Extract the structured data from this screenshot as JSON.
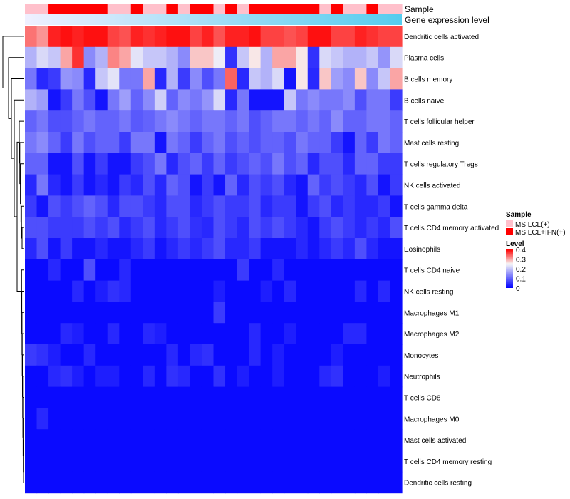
{
  "chart_data": {
    "type": "heatmap",
    "title": "",
    "annotation_rows": [
      {
        "name": "Sample",
        "label": "Sample"
      },
      {
        "name": "Gene expression level",
        "label": "Gene expression level"
      }
    ],
    "sample_groups": [
      0,
      0,
      1,
      1,
      1,
      1,
      1,
      0,
      0,
      1,
      0,
      0,
      1,
      0,
      1,
      1,
      0,
      1,
      0,
      1,
      1,
      1,
      1,
      1,
      1,
      0,
      1,
      0,
      0,
      1,
      0,
      0
    ],
    "legend_sample": {
      "title": "Sample",
      "entries": [
        {
          "label": "MS LCL(+)",
          "color": "#ffc0cb"
        },
        {
          "label": "MS LCL+IFN(+)",
          "color": "#ff0000"
        }
      ]
    },
    "legend_level": {
      "title": "Level",
      "ticks": [
        0.4,
        0.3,
        0.2,
        0.1,
        0
      ],
      "range": [
        0,
        0.4
      ],
      "colors": {
        "low": "#0000ff",
        "mid": "#f7f7f7",
        "high": "#ff0000"
      },
      "mid_value": 0.25
    },
    "expression_bar": {
      "from": "#f0f0ff",
      "to": "#55ccee"
    },
    "rows": [
      "Dendritic cells activated",
      "Plasma cells",
      "B cells memory",
      "B cells naive",
      "T cells follicular helper",
      "Mast cells resting",
      "T cells regulatory  Tregs",
      "NK cells activated",
      "T cells gamma delta",
      "T cells CD4 memory activated",
      "Eosinophils",
      "T cells CD4 naive",
      "NK cells resting",
      "Macrophages M1",
      "Macrophages M2",
      "Monocytes",
      "Neutrophils",
      "T cells CD8",
      "Macrophages M0",
      "Mast cells activated",
      "T cells CD4 memory resting",
      "Dendritic cells resting"
    ],
    "values": [
      [
        0.33,
        0.31,
        0.38,
        0.39,
        0.38,
        0.39,
        0.39,
        0.36,
        0.35,
        0.38,
        0.37,
        0.38,
        0.39,
        0.39,
        0.36,
        0.38,
        0.35,
        0.38,
        0.38,
        0.39,
        0.36,
        0.36,
        0.35,
        0.36,
        0.39,
        0.39,
        0.36,
        0.36,
        0.38,
        0.37,
        0.36,
        0.36
      ],
      [
        0.18,
        0.22,
        0.2,
        0.3,
        0.37,
        0.14,
        0.18,
        0.32,
        0.3,
        0.23,
        0.2,
        0.2,
        0.18,
        0.14,
        0.28,
        0.28,
        0.24,
        0.05,
        0.2,
        0.26,
        0.18,
        0.3,
        0.3,
        0.26,
        0.05,
        0.22,
        0.2,
        0.18,
        0.18,
        0.2,
        0.15,
        0.22
      ],
      [
        0.12,
        0.04,
        0.06,
        0.15,
        0.14,
        0.04,
        0.2,
        0.23,
        0.12,
        0.12,
        0.3,
        0.04,
        0.18,
        0.06,
        0.14,
        0.08,
        0.12,
        0.34,
        0.04,
        0.2,
        0.18,
        0.22,
        0.02,
        0.26,
        0.04,
        0.28,
        0.16,
        0.14,
        0.28,
        0.14,
        0.2,
        0.3
      ],
      [
        0.18,
        0.16,
        0.02,
        0.06,
        0.12,
        0.08,
        0.02,
        0.12,
        0.16,
        0.1,
        0.14,
        0.21,
        0.1,
        0.14,
        0.12,
        0.15,
        0.22,
        0.04,
        0.12,
        0.02,
        0.02,
        0.02,
        0.2,
        0.12,
        0.14,
        0.12,
        0.12,
        0.14,
        0.08,
        0.12,
        0.12,
        0.06
      ],
      [
        0.1,
        0.12,
        0.08,
        0.08,
        0.1,
        0.12,
        0.1,
        0.1,
        0.12,
        0.09,
        0.1,
        0.12,
        0.14,
        0.12,
        0.1,
        0.12,
        0.12,
        0.1,
        0.12,
        0.08,
        0.1,
        0.12,
        0.12,
        0.1,
        0.12,
        0.1,
        0.14,
        0.1,
        0.1,
        0.12,
        0.12,
        0.1
      ],
      [
        0.12,
        0.14,
        0.1,
        0.06,
        0.12,
        0.08,
        0.1,
        0.1,
        0.06,
        0.12,
        0.12,
        0.02,
        0.12,
        0.1,
        0.06,
        0.1,
        0.12,
        0.08,
        0.1,
        0.08,
        0.1,
        0.1,
        0.08,
        0.12,
        0.1,
        0.1,
        0.06,
        0.02,
        0.1,
        0.06,
        0.12,
        0.1
      ],
      [
        0.1,
        0.1,
        0.02,
        0.02,
        0.08,
        0.02,
        0.06,
        0.02,
        0.02,
        0.06,
        0.08,
        0.12,
        0.04,
        0.08,
        0.1,
        0.06,
        0.1,
        0.06,
        0.08,
        0.1,
        0.08,
        0.12,
        0.08,
        0.1,
        0.04,
        0.08,
        0.08,
        0.04,
        0.1,
        0.1,
        0.06,
        0.06
      ],
      [
        0.04,
        0.12,
        0.04,
        0.02,
        0.06,
        0.02,
        0.04,
        0.02,
        0.06,
        0.04,
        0.08,
        0.04,
        0.1,
        0.08,
        0.02,
        0.06,
        0.02,
        0.1,
        0.04,
        0.08,
        0.06,
        0.08,
        0.04,
        0.02,
        0.1,
        0.06,
        0.08,
        0.06,
        0.04,
        0.08,
        0.02,
        0.06
      ],
      [
        0.06,
        0.02,
        0.08,
        0.06,
        0.08,
        0.1,
        0.08,
        0.04,
        0.08,
        0.08,
        0.06,
        0.04,
        0.08,
        0.08,
        0.04,
        0.06,
        0.08,
        0.06,
        0.06,
        0.08,
        0.04,
        0.06,
        0.06,
        0.02,
        0.06,
        0.08,
        0.04,
        0.06,
        0.04,
        0.04,
        0.06,
        0.02
      ],
      [
        0.08,
        0.08,
        0.06,
        0.06,
        0.06,
        0.08,
        0.06,
        0.08,
        0.04,
        0.06,
        0.08,
        0.04,
        0.06,
        0.08,
        0.05,
        0.04,
        0.08,
        0.06,
        0.04,
        0.08,
        0.06,
        0.08,
        0.06,
        0.04,
        0.02,
        0.06,
        0.08,
        0.06,
        0.04,
        0.06,
        0.04,
        0.08
      ],
      [
        0.04,
        0.08,
        0.02,
        0.06,
        0.02,
        0.02,
        0.04,
        0.02,
        0.02,
        0.04,
        0.06,
        0.02,
        0.04,
        0.06,
        0.04,
        0.06,
        0.08,
        0.04,
        0.04,
        0.06,
        0.02,
        0.02,
        0.02,
        0.04,
        0.02,
        0.04,
        0.06,
        0.04,
        0.08,
        0.04,
        0.02,
        0.02
      ],
      [
        0.01,
        0.01,
        0.04,
        0.01,
        0.01,
        0.08,
        0.01,
        0.01,
        0.04,
        0.01,
        0.01,
        0.01,
        0.01,
        0.01,
        0.01,
        0.01,
        0.01,
        0.01,
        0.06,
        0.01,
        0.01,
        0.04,
        0.01,
        0.01,
        0.01,
        0.01,
        0.01,
        0.01,
        0.01,
        0.01,
        0.01,
        0.01
      ],
      [
        0.01,
        0.01,
        0.01,
        0.01,
        0.04,
        0.01,
        0.03,
        0.05,
        0.04,
        0.01,
        0.01,
        0.01,
        0.01,
        0.01,
        0.01,
        0.01,
        0.03,
        0.01,
        0.01,
        0.01,
        0.03,
        0.01,
        0.04,
        0.01,
        0.01,
        0.01,
        0.01,
        0.01,
        0.04,
        0.01,
        0.04,
        0.01
      ],
      [
        0.01,
        0.01,
        0.01,
        0.01,
        0.01,
        0.01,
        0.01,
        0.01,
        0.01,
        0.01,
        0.01,
        0.01,
        0.01,
        0.01,
        0.01,
        0.01,
        0.06,
        0.01,
        0.01,
        0.01,
        0.01,
        0.01,
        0.01,
        0.01,
        0.01,
        0.01,
        0.01,
        0.01,
        0.01,
        0.01,
        0.01,
        0.01
      ],
      [
        0.01,
        0.01,
        0.01,
        0.04,
        0.03,
        0.01,
        0.01,
        0.04,
        0.01,
        0.01,
        0.04,
        0.03,
        0.01,
        0.01,
        0.01,
        0.01,
        0.01,
        0.01,
        0.01,
        0.04,
        0.01,
        0.01,
        0.03,
        0.01,
        0.01,
        0.01,
        0.01,
        0.04,
        0.04,
        0.01,
        0.01,
        0.01
      ],
      [
        0.06,
        0.05,
        0.03,
        0.01,
        0.01,
        0.04,
        0.01,
        0.01,
        0.01,
        0.01,
        0.01,
        0.01,
        0.04,
        0.01,
        0.04,
        0.05,
        0.01,
        0.01,
        0.01,
        0.04,
        0.01,
        0.03,
        0.01,
        0.01,
        0.01,
        0.01,
        0.03,
        0.01,
        0.01,
        0.01,
        0.01,
        0.01
      ],
      [
        0.01,
        0.01,
        0.04,
        0.05,
        0.03,
        0.01,
        0.03,
        0.03,
        0.01,
        0.01,
        0.04,
        0.01,
        0.05,
        0.04,
        0.01,
        0.01,
        0.05,
        0.01,
        0.03,
        0.01,
        0.01,
        0.03,
        0.01,
        0.01,
        0.01,
        0.04,
        0.05,
        0.01,
        0.01,
        0.01,
        0.03,
        0.01
      ],
      [
        0.01,
        0.01,
        0.01,
        0.01,
        0.01,
        0.01,
        0.01,
        0.01,
        0.01,
        0.01,
        0.01,
        0.01,
        0.01,
        0.01,
        0.01,
        0.01,
        0.01,
        0.01,
        0.01,
        0.01,
        0.01,
        0.01,
        0.01,
        0.01,
        0.01,
        0.01,
        0.01,
        0.01,
        0.01,
        0.01,
        0.01,
        0.01
      ],
      [
        0.01,
        0.04,
        0.01,
        0.01,
        0.01,
        0.01,
        0.01,
        0.01,
        0.01,
        0.01,
        0.01,
        0.01,
        0.01,
        0.01,
        0.01,
        0.01,
        0.01,
        0.01,
        0.01,
        0.01,
        0.01,
        0.01,
        0.01,
        0.01,
        0.01,
        0.01,
        0.01,
        0.01,
        0.01,
        0.01,
        0.01,
        0.01
      ],
      [
        0.01,
        0.01,
        0.01,
        0.01,
        0.01,
        0.01,
        0.01,
        0.01,
        0.01,
        0.01,
        0.01,
        0.01,
        0.01,
        0.01,
        0.01,
        0.01,
        0.01,
        0.01,
        0.01,
        0.01,
        0.01,
        0.01,
        0.01,
        0.01,
        0.01,
        0.01,
        0.01,
        0.01,
        0.01,
        0.01,
        0.01,
        0.01
      ],
      [
        0.01,
        0.01,
        0.01,
        0.01,
        0.01,
        0.01,
        0.01,
        0.01,
        0.01,
        0.01,
        0.01,
        0.01,
        0.01,
        0.01,
        0.01,
        0.01,
        0.01,
        0.01,
        0.01,
        0.01,
        0.01,
        0.01,
        0.01,
        0.01,
        0.01,
        0.01,
        0.01,
        0.01,
        0.01,
        0.01,
        0.01,
        0.01
      ],
      [
        0.01,
        0.01,
        0.01,
        0.01,
        0.01,
        0.01,
        0.01,
        0.01,
        0.01,
        0.01,
        0.01,
        0.01,
        0.01,
        0.01,
        0.01,
        0.01,
        0.01,
        0.01,
        0.01,
        0.01,
        0.01,
        0.01,
        0.01,
        0.01,
        0.01,
        0.01,
        0.01,
        0.01,
        0.01,
        0.01,
        0.01,
        0.01
      ]
    ]
  }
}
